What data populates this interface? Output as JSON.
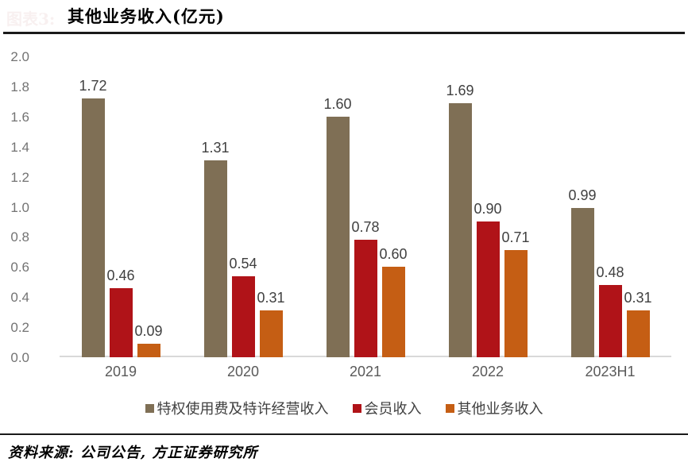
{
  "figure_label": "图表3:",
  "header": {
    "title": "其他业务收入(亿元)"
  },
  "source_note": "资料来源: 公司公告, 方正证券研究所",
  "colors": {
    "series_royalty": "#7F6F55",
    "series_member": "#B01318",
    "series_other": "#C55E14",
    "axis_line": "#D9D9D9",
    "tick_text": "#737373",
    "data_label_text": "#404040",
    "rule": "#1A1A1A"
  },
  "chart_data": {
    "type": "bar",
    "title": "其他业务收入(亿元)",
    "categories": [
      "2019",
      "2020",
      "2021",
      "2022",
      "2023H1"
    ],
    "series": [
      {
        "name": "特权使用费及特许经营收入",
        "color": "#7F6F55",
        "values": [
          1.72,
          1.31,
          1.6,
          1.69,
          0.99
        ]
      },
      {
        "name": "会员收入",
        "color": "#B01318",
        "values": [
          0.46,
          0.54,
          0.78,
          0.9,
          0.48
        ]
      },
      {
        "name": "其他业务收入",
        "color": "#C55E14",
        "values": [
          0.09,
          0.31,
          0.6,
          0.71,
          0.31
        ]
      }
    ],
    "ylabel": "",
    "xlabel": "",
    "ylim": [
      0,
      2.0
    ],
    "ytick_step": 0.2,
    "ytick_labels": [
      "0.0",
      "0.2",
      "0.4",
      "0.6",
      "0.8",
      "1.0",
      "1.2",
      "1.4",
      "1.6",
      "1.8",
      "2.0"
    ],
    "grid": false,
    "data_labels": true,
    "legend_position": "bottom"
  }
}
